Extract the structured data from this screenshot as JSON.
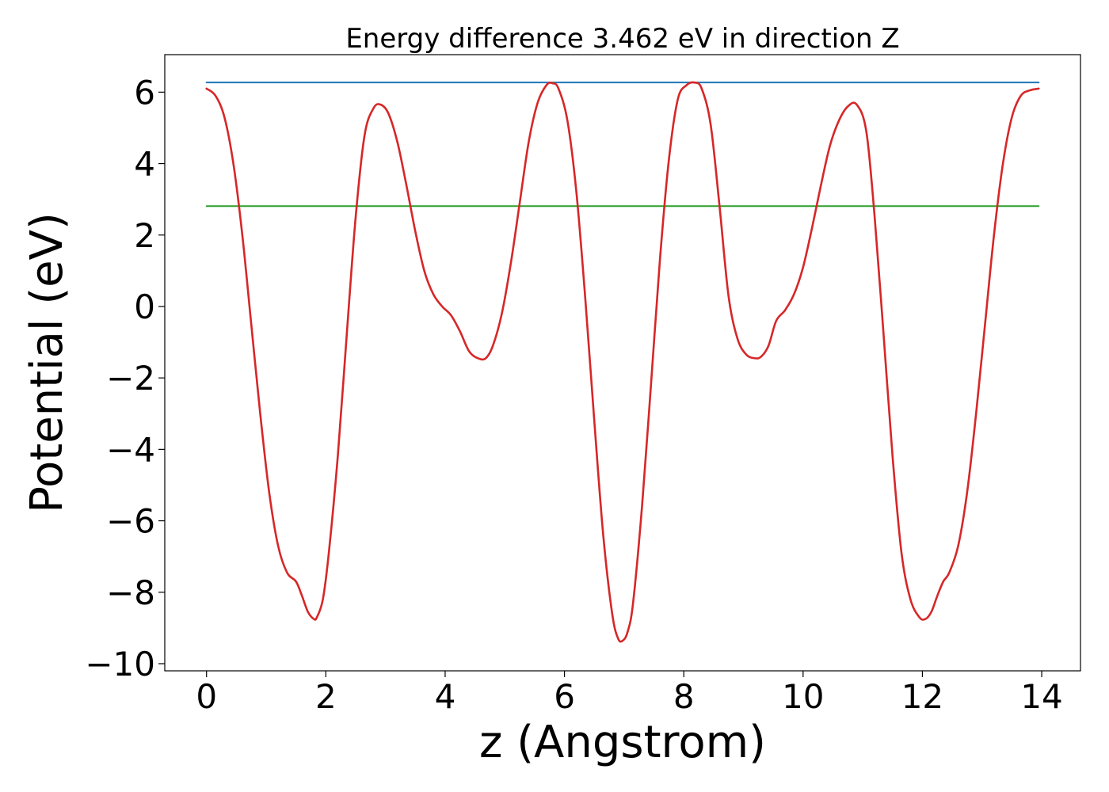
{
  "chart_data": {
    "type": "line",
    "title": "Energy difference 3.462 eV in direction Z",
    "xlabel": "z (Angstrom)",
    "ylabel": "Potential (eV)",
    "xlim": [
      -0.7,
      14.65
    ],
    "ylim": [
      -10.2,
      7.05
    ],
    "xticks": [
      0,
      2,
      4,
      6,
      8,
      10,
      12,
      14
    ],
    "yticks": [
      -10,
      -8,
      -6,
      -4,
      -2,
      0,
      2,
      4,
      6
    ],
    "xtick_labels": [
      "0",
      "2",
      "4",
      "6",
      "8",
      "10",
      "12",
      "14"
    ],
    "ytick_labels": [
      "−10",
      "−8",
      "−6",
      "−4",
      "−2",
      "0",
      "2",
      "4",
      "6"
    ],
    "grid": false,
    "series": [
      {
        "color": "#d62728",
        "x": [
          0,
          0.15,
          0.3,
          0.45,
          0.6,
          0.75,
          0.9,
          1.05,
          1.2,
          1.35,
          1.5,
          1.6,
          1.7,
          1.8,
          1.85,
          1.95,
          2.05,
          2.2,
          2.35,
          2.5,
          2.65,
          2.8,
          2.92,
          3.05,
          3.2,
          3.35,
          3.5,
          3.65,
          3.8,
          3.95,
          4.1,
          4.25,
          4.4,
          4.55,
          4.68,
          4.8,
          4.95,
          5.1,
          5.25,
          5.4,
          5.55,
          5.7,
          5.8,
          5.9,
          6.05,
          6.2,
          6.35,
          6.5,
          6.65,
          6.8,
          6.9,
          6.98,
          7.06,
          7.15,
          7.3,
          7.45,
          7.6,
          7.75,
          7.9,
          8.05,
          8.18,
          8.3,
          8.45,
          8.6,
          8.75,
          8.9,
          9.05,
          9.2,
          9.3,
          9.42,
          9.55,
          9.7,
          9.85,
          10.0,
          10.15,
          10.3,
          10.45,
          10.6,
          10.75,
          10.9,
          11.06,
          11.2,
          11.35,
          11.5,
          11.65,
          11.8,
          11.95,
          12.05,
          12.15,
          12.25,
          12.35,
          12.45,
          12.6,
          12.75,
          12.9,
          13.05,
          13.2,
          13.35,
          13.5,
          13.65,
          13.8,
          13.95
        ],
        "y": [
          6.1,
          5.9,
          5.3,
          4.0,
          2.0,
          -0.5,
          -3.0,
          -5.2,
          -6.7,
          -7.45,
          -7.7,
          -8.1,
          -8.55,
          -8.75,
          -8.7,
          -8.2,
          -6.9,
          -4.2,
          -0.8,
          2.5,
          4.8,
          5.55,
          5.65,
          5.4,
          4.6,
          3.4,
          2.1,
          1.0,
          0.35,
          0.0,
          -0.25,
          -0.7,
          -1.25,
          -1.45,
          -1.45,
          -1.1,
          -0.2,
          1.2,
          2.9,
          4.6,
          5.7,
          6.2,
          6.25,
          6.1,
          5.2,
          3.2,
          0.2,
          -3.2,
          -6.4,
          -8.6,
          -9.3,
          -9.35,
          -9.1,
          -8.3,
          -5.6,
          -2.2,
          1.3,
          4.1,
          5.8,
          6.2,
          6.27,
          6.1,
          5.1,
          2.8,
          0.3,
          -0.9,
          -1.35,
          -1.45,
          -1.4,
          -1.1,
          -0.4,
          -0.1,
          0.35,
          1.1,
          2.2,
          3.4,
          4.5,
          5.2,
          5.6,
          5.65,
          4.9,
          2.5,
          -0.8,
          -4.2,
          -6.9,
          -8.2,
          -8.7,
          -8.75,
          -8.55,
          -8.1,
          -7.7,
          -7.45,
          -6.7,
          -5.2,
          -3.0,
          -0.5,
          2.0,
          4.0,
          5.3,
          5.9,
          6.05,
          6.1
        ]
      },
      {
        "color": "#1f77b4",
        "x": [
          0,
          13.95
        ],
        "y": [
          6.27,
          6.27
        ]
      },
      {
        "color": "#2ca02c",
        "x": [
          0,
          13.95
        ],
        "y": [
          2.81,
          2.81
        ]
      }
    ]
  }
}
